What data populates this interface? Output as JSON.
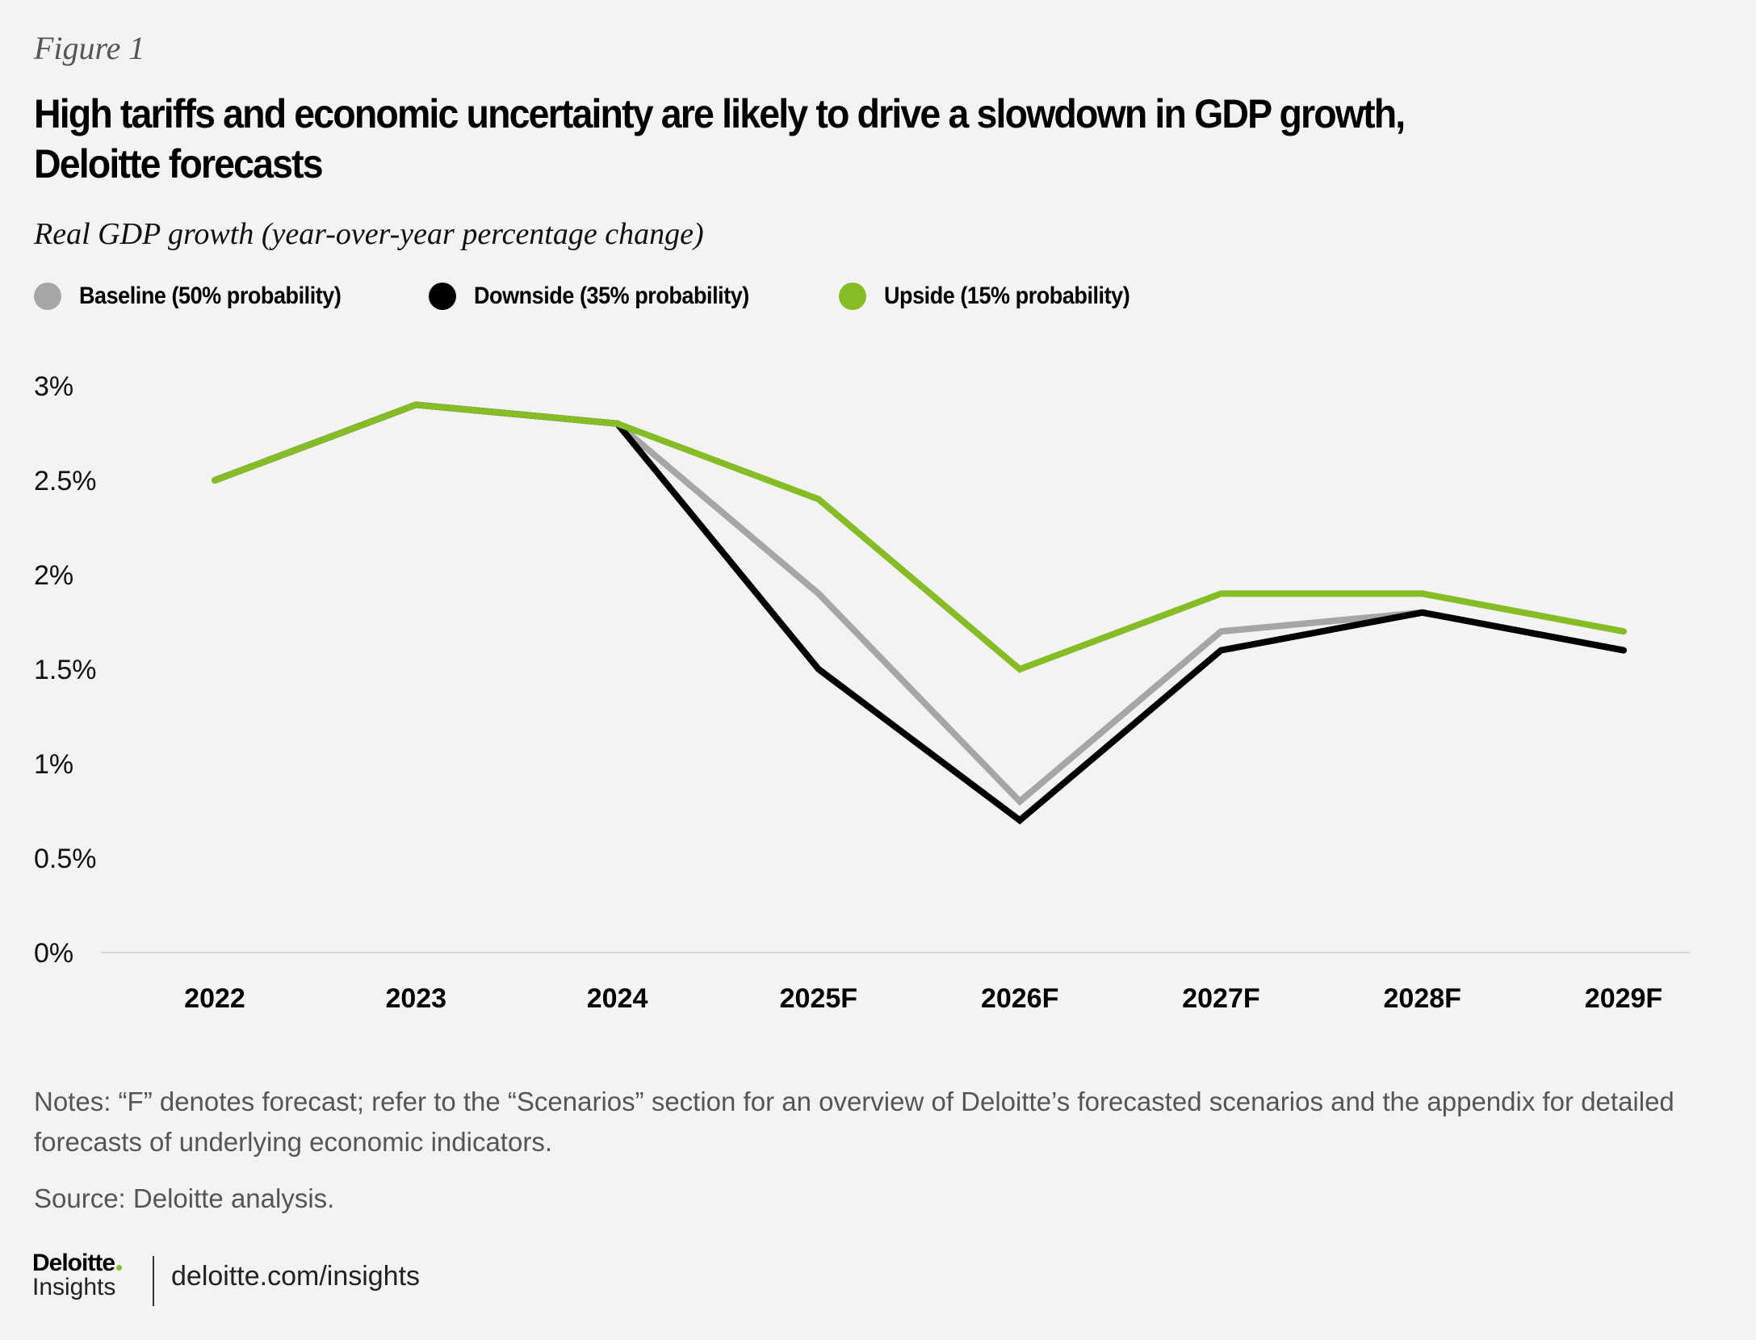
{
  "figure_label": "Figure 1",
  "title": "High tariffs and economic uncertainty are likely to drive a slowdown in GDP growth, Deloitte forecasts",
  "subtitle": "Real GDP growth (year-over-year percentage change)",
  "legend": [
    {
      "label": "Baseline (50% probability)",
      "color": "#a6a6a6"
    },
    {
      "label": "Downside (35% probability)",
      "color": "#000000"
    },
    {
      "label": "Upside (15% probability)",
      "color": "#86bc25"
    }
  ],
  "chart_data": {
    "type": "line",
    "title": "High tariffs and economic uncertainty are likely to drive a slowdown in GDP growth, Deloitte forecasts",
    "subtitle": "Real GDP growth (year-over-year percentage change)",
    "xlabel": "",
    "ylabel": "",
    "categories": [
      "2022",
      "2023",
      "2024",
      "2025F",
      "2026F",
      "2027F",
      "2028F",
      "2029F"
    ],
    "ylim": [
      0,
      3
    ],
    "yticks": [
      0,
      0.5,
      1,
      1.5,
      2,
      2.5,
      3
    ],
    "ytick_labels": [
      "0%",
      "0.5%",
      "1%",
      "1.5%",
      "2%",
      "2.5%",
      "3%"
    ],
    "grid": false,
    "legend_position": "top-left",
    "series": [
      {
        "name": "Baseline (50% probability)",
        "color": "#a6a6a6",
        "values": [
          2.5,
          2.9,
          2.8,
          1.9,
          0.8,
          1.7,
          1.8,
          1.6
        ]
      },
      {
        "name": "Downside (35% probability)",
        "color": "#000000",
        "values": [
          2.5,
          2.9,
          2.8,
          1.5,
          0.7,
          1.6,
          1.8,
          1.6
        ]
      },
      {
        "name": "Upside (15% probability)",
        "color": "#86bc25",
        "values": [
          2.5,
          2.9,
          2.8,
          2.4,
          1.5,
          1.9,
          1.9,
          1.7
        ]
      }
    ]
  },
  "notes": "Notes: “F” denotes forecast; refer to the “Scenarios” section for an overview of Deloitte’s forecasted scenarios and the appendix for detailed forecasts of underlying economic indicators.",
  "source": "Source: Deloitte analysis.",
  "footer": {
    "logo_name": "Deloitte",
    "logo_sub": "Insights",
    "url": "deloitte.com/insights"
  }
}
